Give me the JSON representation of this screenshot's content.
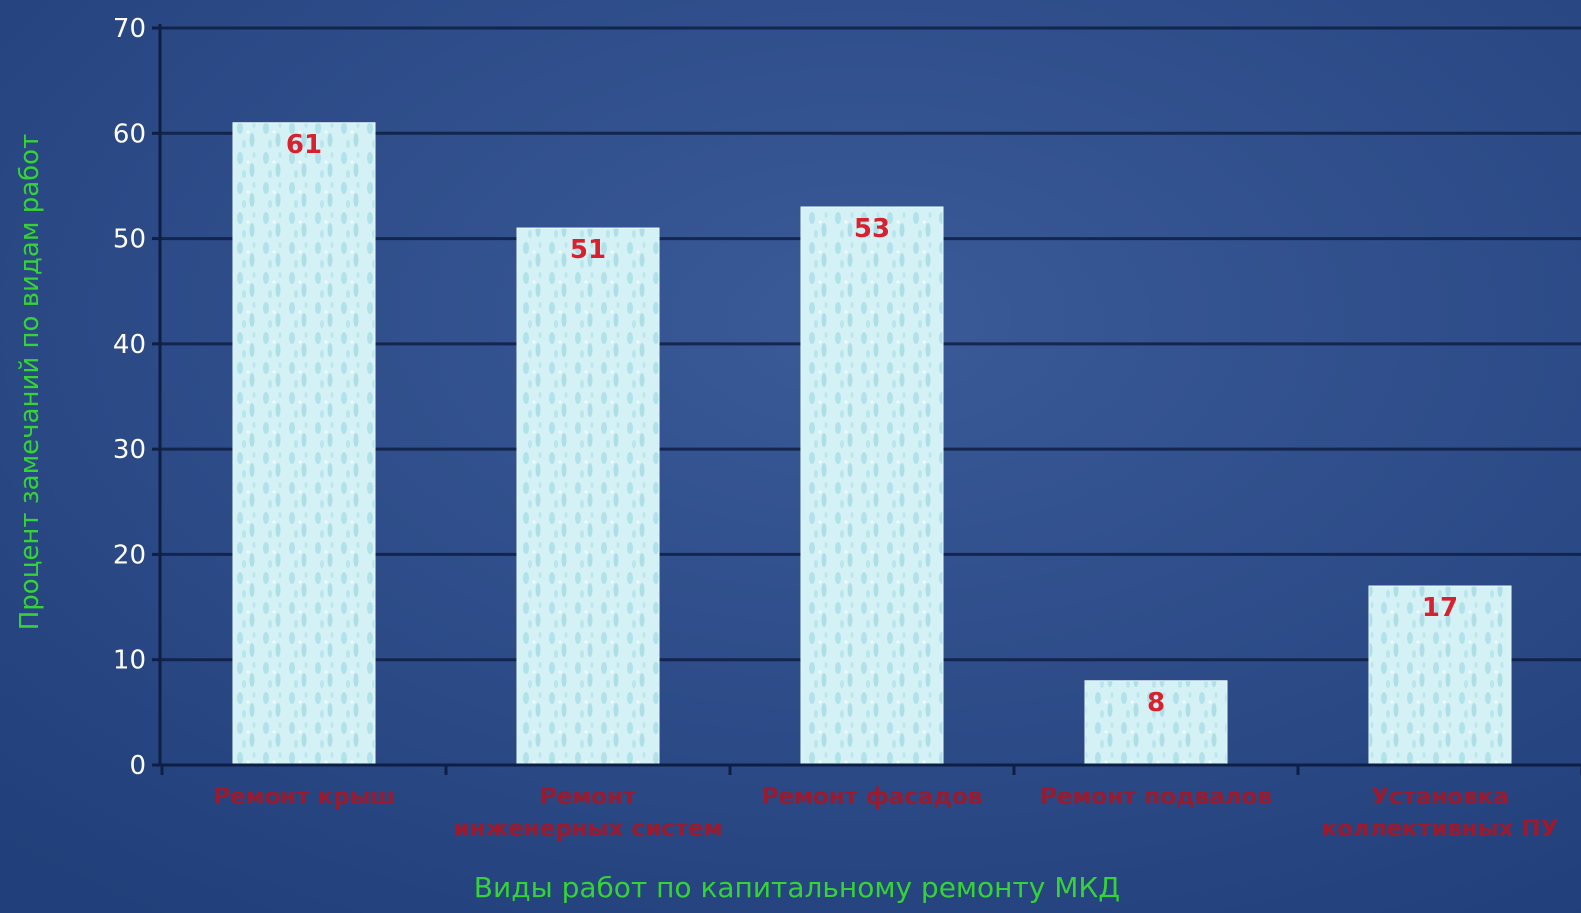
{
  "colors": {
    "background": "#2b4a86",
    "background_dark": "#1f3a72",
    "bar_fill": "#cdeef2",
    "bar_texture": "#9fd8e2",
    "gridline": "#0e1f44",
    "axis_label": "#35d335",
    "category_label": "#9b1a2e",
    "value_label": "#d8202e",
    "tick_label": "#ffffff"
  },
  "chart_data": {
    "type": "bar",
    "title": "",
    "xlabel": "Виды работ по капитальному ремонту МКД",
    "ylabel": "Процент замечаний по видам работ",
    "ylim": [
      0,
      70
    ],
    "yticks": [
      0,
      10,
      20,
      30,
      40,
      50,
      60,
      70
    ],
    "grid": true,
    "legend": "none",
    "categories": [
      [
        "Ремонт крыш"
      ],
      [
        "Ремонт",
        "инженерных систем"
      ],
      [
        "Ремонт фасадов"
      ],
      [
        "Ремонт подвалов"
      ],
      [
        "Установка",
        "коллективных ПУ"
      ]
    ],
    "values": [
      61,
      51,
      53,
      8,
      17
    ],
    "data_labels": [
      "61",
      "51",
      "53",
      "8",
      "17"
    ]
  }
}
